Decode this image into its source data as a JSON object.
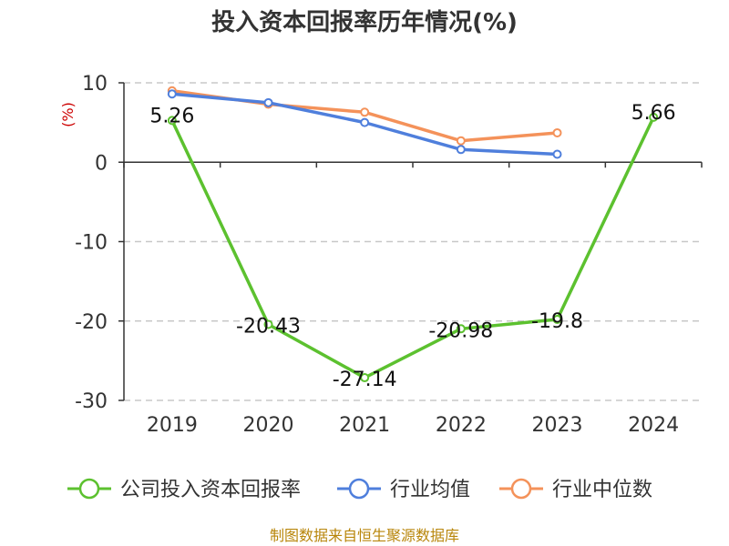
{
  "chart_data": {
    "type": "line",
    "title": "投入资本回报率历年情况(%)",
    "unit_label": "(%)",
    "categories": [
      "2019",
      "2020",
      "2021",
      "2022",
      "2023",
      "2024"
    ],
    "ylim": [
      -30,
      10
    ],
    "yticks": [
      10,
      0,
      -10,
      -20,
      -30
    ],
    "grid": true,
    "legend_position": "bottom",
    "series": [
      {
        "name": "公司投入资本回报率",
        "color": "#5cc12f",
        "values": [
          5.26,
          -20.43,
          -27.14,
          -20.98,
          -19.8,
          5.66
        ],
        "labels": [
          "5.26",
          "-20.43",
          "-27.14",
          "-20.98",
          "-19.8",
          "5.66"
        ]
      },
      {
        "name": "行业均值",
        "color": "#4f7fdc",
        "values": [
          8.6,
          7.5,
          5.0,
          1.6,
          1.0,
          null
        ]
      },
      {
        "name": "行业中位数",
        "color": "#f4925a",
        "values": [
          9.0,
          7.3,
          6.3,
          2.7,
          3.7,
          null
        ]
      }
    ]
  },
  "source": "制图数据来自恒生聚源数据库"
}
